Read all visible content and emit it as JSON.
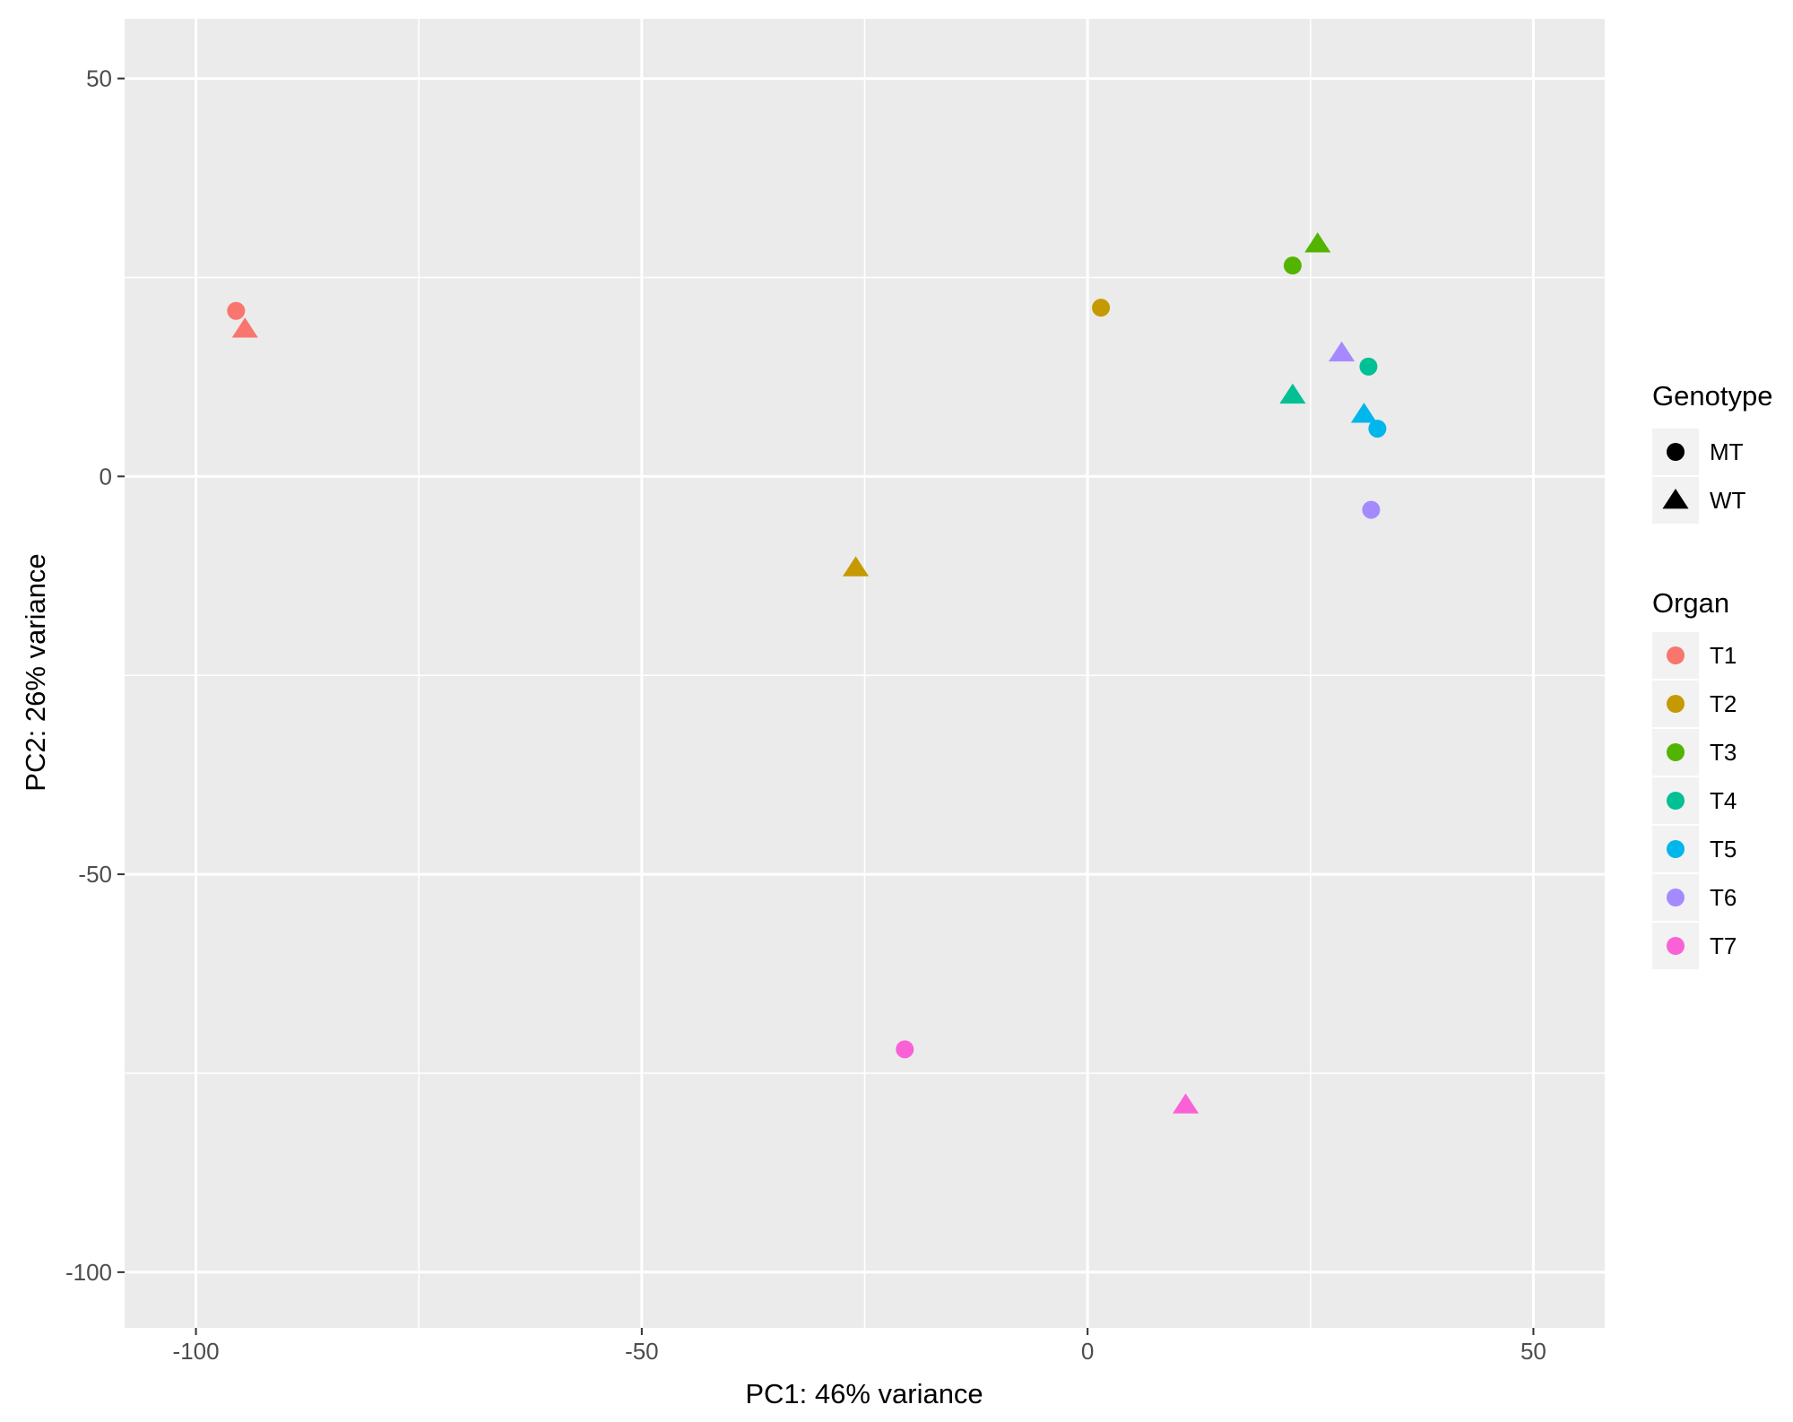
{
  "chart_data": {
    "type": "scatter",
    "xlabel": "PC1: 46% variance",
    "ylabel": "PC2: 26% variance",
    "xlim": [
      -108,
      58
    ],
    "ylim": [
      -107,
      57.5
    ],
    "x_ticks": [
      -100,
      -50,
      0,
      50
    ],
    "y_ticks": [
      50,
      0,
      -50,
      -100
    ],
    "x_tick_labels": [
      "-100",
      "-50",
      "0",
      "50"
    ],
    "y_tick_labels": [
      "50",
      "0",
      "-50",
      "-100"
    ],
    "grid": true,
    "background": "#EBEBEB",
    "legend_position": "right",
    "legends": {
      "shape": {
        "title": "Genotype",
        "entries": [
          {
            "label": "MT",
            "shape": "circle"
          },
          {
            "label": "WT",
            "shape": "triangle"
          }
        ]
      },
      "color": {
        "title": "Organ",
        "entries": [
          {
            "label": "T1",
            "color": "#F8766D"
          },
          {
            "label": "T2",
            "color": "#C49A00"
          },
          {
            "label": "T3",
            "color": "#53B400"
          },
          {
            "label": "T4",
            "color": "#00C094"
          },
          {
            "label": "T5",
            "color": "#00B6EB"
          },
          {
            "label": "T6",
            "color": "#A58AFF"
          },
          {
            "label": "T7",
            "color": "#FB61D7"
          }
        ]
      }
    },
    "points": [
      {
        "organ": "T1",
        "genotype": "MT",
        "x": -95.5,
        "y": 20.8
      },
      {
        "organ": "T1",
        "genotype": "WT",
        "x": -94.5,
        "y": 18.5
      },
      {
        "organ": "T2",
        "genotype": "MT",
        "x": 1.5,
        "y": 21.2
      },
      {
        "organ": "T2",
        "genotype": "WT",
        "x": -26.0,
        "y": -11.5
      },
      {
        "organ": "T3",
        "genotype": "MT",
        "x": 23.0,
        "y": 26.5
      },
      {
        "organ": "T3",
        "genotype": "WT",
        "x": 25.8,
        "y": 29.2
      },
      {
        "organ": "T4",
        "genotype": "MT",
        "x": 31.5,
        "y": 13.8
      },
      {
        "organ": "T4",
        "genotype": "WT",
        "x": 23.0,
        "y": 10.2
      },
      {
        "organ": "T5",
        "genotype": "MT",
        "x": 32.5,
        "y": 6.0
      },
      {
        "organ": "T5",
        "genotype": "WT",
        "x": 31.0,
        "y": 7.8
      },
      {
        "organ": "T6",
        "genotype": "MT",
        "x": 31.8,
        "y": -4.2
      },
      {
        "organ": "T6",
        "genotype": "WT",
        "x": 28.5,
        "y": 15.5
      },
      {
        "organ": "T7",
        "genotype": "MT",
        "x": -20.5,
        "y": -72.0
      },
      {
        "organ": "T7",
        "genotype": "WT",
        "x": 11.0,
        "y": -79.0
      }
    ]
  }
}
